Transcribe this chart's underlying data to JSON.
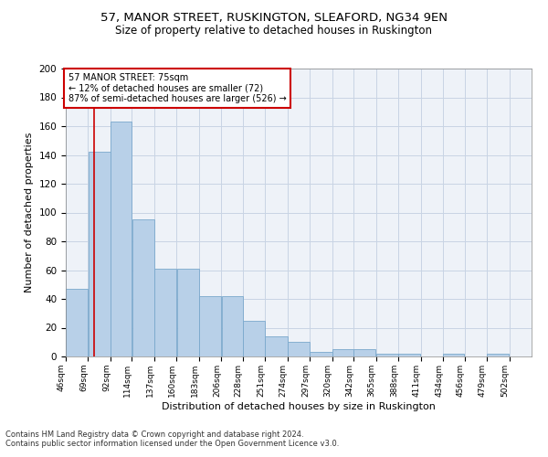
{
  "title1": "57, MANOR STREET, RUSKINGTON, SLEAFORD, NG34 9EN",
  "title2": "Size of property relative to detached houses in Ruskington",
  "xlabel": "Distribution of detached houses by size in Ruskington",
  "ylabel": "Number of detached properties",
  "footnote1": "Contains HM Land Registry data © Crown copyright and database right 2024.",
  "footnote2": "Contains public sector information licensed under the Open Government Licence v3.0.",
  "annotation_line1": "57 MANOR STREET: 75sqm",
  "annotation_line2": "← 12% of detached houses are smaller (72)",
  "annotation_line3": "87% of semi-detached houses are larger (526) →",
  "bar_left_edges": [
    46,
    69,
    92,
    114,
    137,
    160,
    183,
    206,
    228,
    251,
    274,
    297,
    320,
    342,
    365,
    388,
    411,
    434,
    456,
    479
  ],
  "bar_widths": [
    23,
    23,
    22,
    23,
    23,
    23,
    23,
    22,
    23,
    23,
    23,
    23,
    22,
    23,
    23,
    23,
    23,
    22,
    23,
    23
  ],
  "bar_heights": [
    47,
    142,
    163,
    95,
    61,
    61,
    42,
    42,
    25,
    14,
    10,
    3,
    5,
    5,
    2,
    2,
    0,
    2,
    0,
    2
  ],
  "tick_labels": [
    "46sqm",
    "69sqm",
    "92sqm",
    "114sqm",
    "137sqm",
    "160sqm",
    "183sqm",
    "206sqm",
    "228sqm",
    "251sqm",
    "274sqm",
    "297sqm",
    "320sqm",
    "342sqm",
    "365sqm",
    "388sqm",
    "411sqm",
    "434sqm",
    "456sqm",
    "479sqm",
    "502sqm"
  ],
  "bar_color": "#b8d0e8",
  "bar_edge_color": "#7aa8cc",
  "vline_color": "#cc0000",
  "vline_x": 75,
  "grid_color": "#c8d4e4",
  "background_color": "#eef2f8",
  "ylim": [
    0,
    200
  ],
  "yticks": [
    0,
    20,
    40,
    60,
    80,
    100,
    120,
    140,
    160,
    180,
    200
  ],
  "annotation_box_color": "#cc0000",
  "title1_fontsize": 9.5,
  "title2_fontsize": 8.5,
  "xlabel_fontsize": 8,
  "ylabel_fontsize": 8,
  "footnote_fontsize": 6,
  "annot_fontsize": 7
}
